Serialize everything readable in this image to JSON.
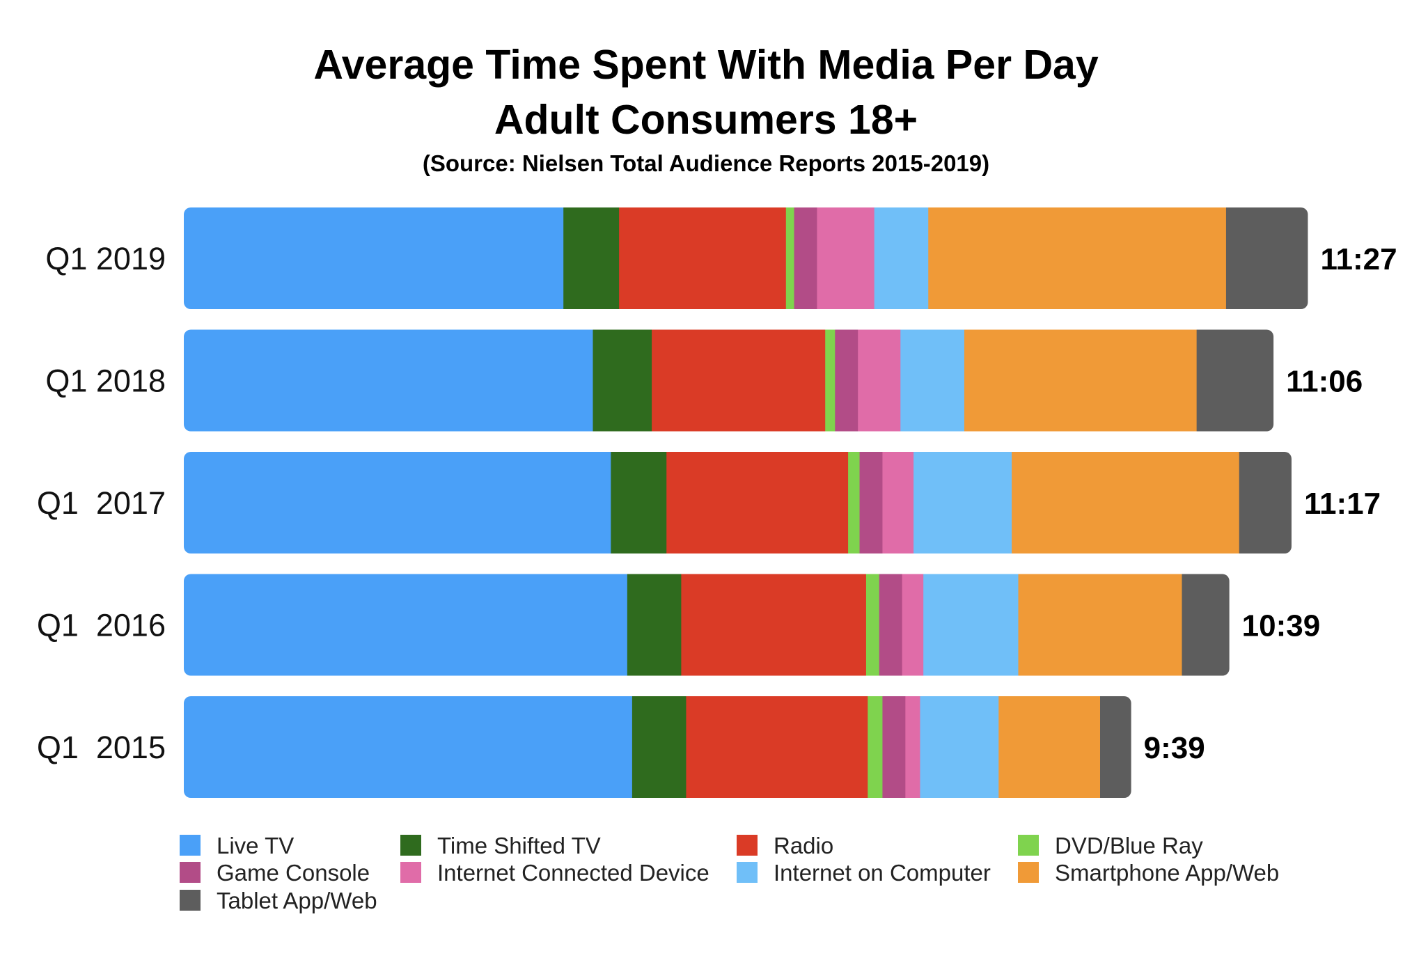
{
  "chart_data": {
    "type": "bar",
    "orientation": "horizontal",
    "stacked": true,
    "title_lines": [
      "Average Time Spent With Media Per Day",
      "Adult Consumers 18+"
    ],
    "subtitle": "(Source: Nielsen Total Audience Reports 2015-2019)",
    "unit": "minutes",
    "categories": [
      "Q1 2019",
      "Q1 2018",
      "Q1  2017",
      "Q1  2016",
      "Q1  2015"
    ],
    "totals": [
      "11:27",
      "11:06",
      "11:17",
      "10:39",
      "9:39"
    ],
    "total_minutes": [
      687,
      666,
      677,
      639,
      579
    ],
    "series": [
      {
        "name": "Live TV",
        "color": "#4AA0F8",
        "values": [
          232,
          250,
          261,
          271,
          274
        ]
      },
      {
        "name": "Time Shifted TV",
        "color": "#2F6B1E",
        "values": [
          34,
          36,
          34,
          33,
          33
        ]
      },
      {
        "name": "Radio",
        "color": "#DA3B26",
        "values": [
          102,
          106,
          111,
          113,
          111
        ]
      },
      {
        "name": "DVD/Blue Ray",
        "color": "#7FD34E",
        "values": [
          5,
          6,
          7,
          8,
          9
        ]
      },
      {
        "name": "Game Console",
        "color": "#B24C87",
        "values": [
          14,
          14,
          14,
          14,
          14
        ]
      },
      {
        "name": "Internet Connected Device",
        "color": "#E06CA8",
        "values": [
          35,
          26,
          19,
          13,
          9
        ]
      },
      {
        "name": "Internet on Computer",
        "color": "#70BFF8",
        "values": [
          33,
          39,
          60,
          58,
          48
        ]
      },
      {
        "name": "Smartphone App/Web",
        "color": "#F09A37",
        "values": [
          182,
          142,
          139,
          100,
          62
        ]
      },
      {
        "name": "Tablet App/Web",
        "color": "#5D5D5D",
        "values": [
          50,
          47,
          32,
          29,
          19
        ]
      }
    ],
    "xlim": [
      0,
      700
    ],
    "grid": false,
    "legend_position": "bottom"
  }
}
